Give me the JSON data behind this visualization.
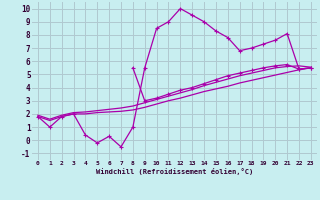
{
  "xlabel": "Windchill (Refroidissement éolien,°C)",
  "bg_color": "#c8eef0",
  "grid_color": "#b0c8d0",
  "line_color": "#aa00aa",
  "marker": "+",
  "xlim": [
    -0.5,
    23.5
  ],
  "ylim": [
    -1.5,
    10.5
  ],
  "xticks": [
    0,
    1,
    2,
    3,
    4,
    5,
    6,
    7,
    8,
    9,
    10,
    11,
    12,
    13,
    14,
    15,
    16,
    17,
    18,
    19,
    20,
    21,
    22,
    23
  ],
  "yticks": [
    -1,
    0,
    1,
    2,
    3,
    4,
    5,
    6,
    7,
    8,
    9,
    10
  ],
  "series1_x": [
    0,
    1,
    2,
    3,
    4,
    5,
    6,
    7,
    8,
    9,
    10,
    11,
    12,
    13,
    14,
    15,
    16,
    17,
    18,
    19,
    20,
    21,
    22,
    23
  ],
  "series1_y": [
    1.8,
    1.5,
    1.8,
    2.0,
    2.0,
    2.1,
    2.15,
    2.2,
    2.3,
    2.5,
    2.75,
    3.0,
    3.2,
    3.45,
    3.7,
    3.9,
    4.1,
    4.35,
    4.55,
    4.75,
    4.95,
    5.15,
    5.35,
    5.5
  ],
  "series2_x": [
    0,
    1,
    2,
    3,
    4,
    5,
    6,
    7,
    8,
    9,
    10,
    11,
    12,
    13,
    14,
    15,
    16,
    17,
    18,
    19,
    20,
    21,
    22,
    23
  ],
  "series2_y": [
    1.9,
    1.6,
    1.9,
    2.1,
    2.15,
    2.25,
    2.35,
    2.45,
    2.6,
    2.85,
    3.1,
    3.35,
    3.6,
    3.85,
    4.15,
    4.4,
    4.65,
    4.9,
    5.1,
    5.3,
    5.5,
    5.6,
    5.65,
    5.55
  ],
  "series3_x": [
    0,
    1,
    2,
    3,
    4,
    5,
    6,
    7,
    8,
    9,
    10,
    11,
    12,
    13,
    14,
    15,
    16,
    17,
    18,
    19,
    20,
    21,
    22,
    23
  ],
  "series3_y": [
    1.8,
    1.0,
    1.8,
    2.0,
    0.4,
    -0.2,
    0.3,
    -0.5,
    1.0,
    5.5,
    8.5,
    9.0,
    10.0,
    9.5,
    9.0,
    8.3,
    7.8,
    6.8,
    7.0,
    7.3,
    7.6,
    8.1,
    5.4,
    5.5
  ],
  "series4_x": [
    8,
    9,
    10,
    11,
    12,
    13,
    14,
    15,
    16,
    17,
    18,
    19,
    20,
    21,
    22,
    23
  ],
  "series4_y": [
    5.5,
    3.0,
    3.2,
    3.5,
    3.8,
    4.0,
    4.3,
    4.6,
    4.9,
    5.1,
    5.3,
    5.5,
    5.65,
    5.75,
    5.4,
    5.5
  ]
}
